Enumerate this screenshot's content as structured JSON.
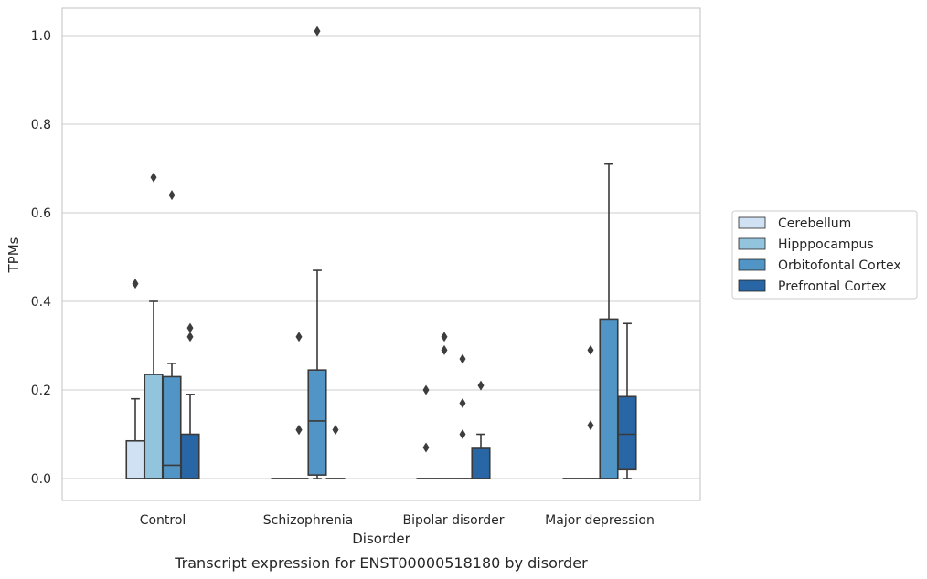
{
  "chart_data": {
    "type": "box",
    "title": "",
    "caption": "Transcript expression for ENST00000518180 by disorder",
    "xlabel": "Disorder",
    "ylabel": "TPMs",
    "ylim": [
      -0.05,
      1.06
    ],
    "yticks": [
      "0.0",
      "0.2",
      "0.4",
      "0.6",
      "0.8",
      "1.0"
    ],
    "categories": [
      "Control",
      "Schizophrenia",
      "Bipolar disorder",
      "Major depression"
    ],
    "grid": "horizontal",
    "legend_position": "right",
    "series": [
      {
        "name": "Cerebellum",
        "color": "#cfe1f2",
        "boxes": [
          {
            "q1": 0,
            "median": 0,
            "q3": 0.085,
            "whisker_low": 0,
            "whisker_high": 0.18,
            "outliers": [
              0.44
            ]
          },
          {
            "q1": 0,
            "median": 0,
            "q3": 0,
            "whisker_low": 0,
            "whisker_high": 0,
            "outliers": []
          },
          {
            "q1": 0,
            "median": 0,
            "q3": 0,
            "whisker_low": 0,
            "whisker_high": 0,
            "outliers": [
              0.2,
              0.07
            ]
          },
          {
            "q1": 0,
            "median": 0,
            "q3": 0,
            "whisker_low": 0,
            "whisker_high": 0,
            "outliers": []
          }
        ]
      },
      {
        "name": "Hipppocampus",
        "color": "#93c4de",
        "boxes": [
          {
            "q1": 0,
            "median": 0,
            "q3": 0.235,
            "whisker_low": 0,
            "whisker_high": 0.4,
            "outliers": [
              0.68
            ]
          },
          {
            "q1": 0,
            "median": 0,
            "q3": 0,
            "whisker_low": 0,
            "whisker_high": 0,
            "outliers": [
              0.32,
              0.11,
              0.11
            ]
          },
          {
            "q1": 0,
            "median": 0,
            "q3": 0,
            "whisker_low": 0,
            "whisker_high": 0,
            "outliers": [
              0.32,
              0.29
            ]
          },
          {
            "q1": 0,
            "median": 0,
            "q3": 0,
            "whisker_low": 0,
            "whisker_high": 0,
            "outliers": [
              0.29,
              0.12
            ]
          }
        ]
      },
      {
        "name": "Orbitofontal Cortex",
        "color": "#5095c6",
        "boxes": [
          {
            "q1": 0,
            "median": 0.03,
            "q3": 0.23,
            "whisker_low": 0,
            "whisker_high": 0.26,
            "outliers": [
              0.64
            ]
          },
          {
            "q1": 0.008,
            "median": 0.13,
            "q3": 0.245,
            "whisker_low": 0,
            "whisker_high": 0.47,
            "outliers": [
              1.01
            ]
          },
          {
            "q1": 0,
            "median": 0,
            "q3": 0,
            "whisker_low": 0,
            "whisker_high": 0,
            "outliers": [
              0.27,
              0.17,
              0.1
            ]
          },
          {
            "q1": 0,
            "median": 0,
            "q3": 0.36,
            "whisker_low": 0,
            "whisker_high": 0.71,
            "outliers": []
          }
        ]
      },
      {
        "name": "Prefrontal Cortex",
        "color": "#2866a6",
        "boxes": [
          {
            "q1": 0,
            "median": 0,
            "q3": 0.1,
            "whisker_low": 0,
            "whisker_high": 0.19,
            "outliers": [
              0.34,
              0.32
            ]
          },
          {
            "q1": 0,
            "median": 0,
            "q3": 0,
            "whisker_low": 0,
            "whisker_high": 0,
            "outliers": [
              0.11
            ]
          },
          {
            "q1": 0,
            "median": 0,
            "q3": 0.068,
            "whisker_low": 0,
            "whisker_high": 0.1,
            "outliers": [
              0.21
            ]
          },
          {
            "q1": 0.02,
            "median": 0.1,
            "q3": 0.185,
            "whisker_low": 0,
            "whisker_high": 0.35,
            "outliers": []
          }
        ]
      }
    ]
  }
}
